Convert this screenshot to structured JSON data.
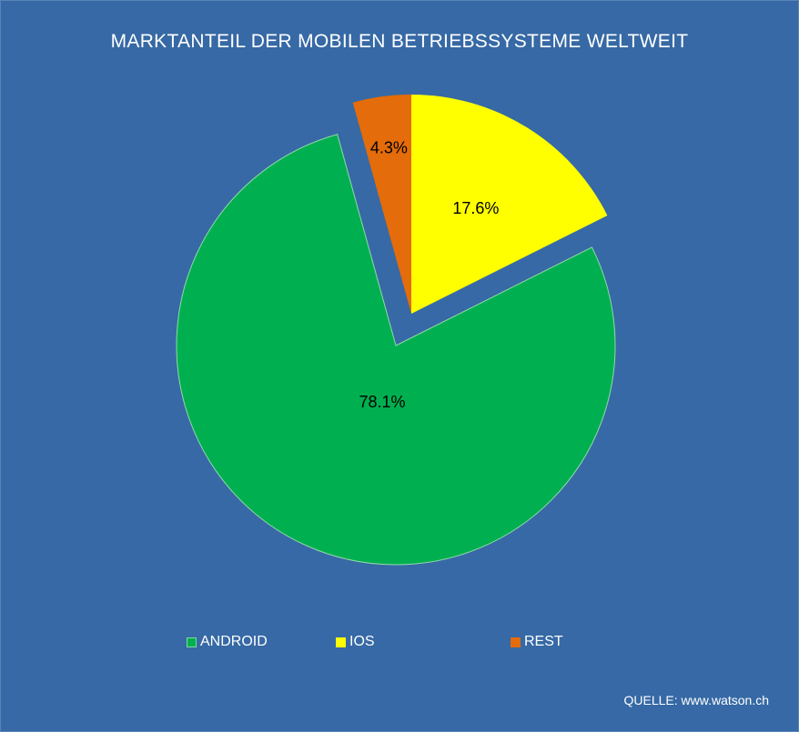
{
  "chart_data": {
    "type": "pie",
    "title": "MARKTANTEIL DER MOBILEN BETRIEBSSYSTEME WELTWEIT",
    "slices": [
      {
        "name": "IOS",
        "value": 17.6,
        "label": "17.6%",
        "color": "#ffff00",
        "exploded": true
      },
      {
        "name": "ANDROID",
        "value": 78.1,
        "label": "78.1%",
        "color": "#00b050",
        "exploded": false
      },
      {
        "name": "REST",
        "value": 4.3,
        "label": "4.3%",
        "color": "#e46c0a",
        "exploded": true
      }
    ],
    "legend": [
      "ANDROID",
      "IOS",
      "REST"
    ],
    "legend_placement": "bottom"
  },
  "source": "QUELLE: www.watson.ch"
}
